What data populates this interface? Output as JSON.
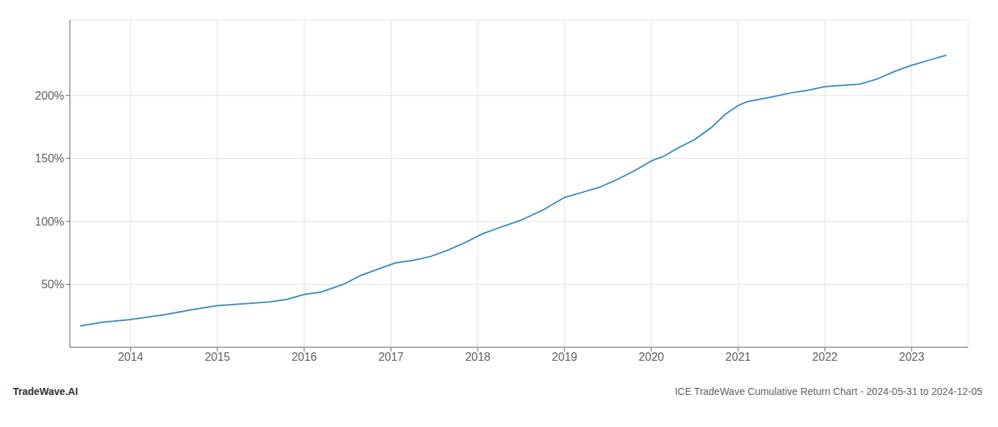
{
  "chart_data": {
    "type": "line",
    "title": "ICE TradeWave Cumulative Return Chart - 2024-05-31 to 2024-12-05",
    "annotations": [
      "TradeWave.AI"
    ],
    "x": [
      2013.42,
      2013.55,
      2013.7,
      2013.85,
      2014.0,
      2014.2,
      2014.4,
      2014.6,
      2014.8,
      2015.0,
      2015.2,
      2015.4,
      2015.6,
      2015.8,
      2016.0,
      2016.2,
      2016.45,
      2016.65,
      2016.85,
      2017.05,
      2017.25,
      2017.45,
      2017.65,
      2017.85,
      2018.05,
      2018.25,
      2018.5,
      2018.75,
      2019.0,
      2019.2,
      2019.4,
      2019.6,
      2019.8,
      2020.0,
      2020.15,
      2020.3,
      2020.5,
      2020.7,
      2020.85,
      2021.0,
      2021.1,
      2021.25,
      2021.4,
      2021.6,
      2021.8,
      2022.0,
      2022.2,
      2022.4,
      2022.6,
      2022.8,
      2023.0,
      2023.2,
      2023.4
    ],
    "values": [
      17,
      18.5,
      20,
      21,
      22,
      24,
      26,
      28.5,
      31,
      33,
      34,
      35,
      36,
      38,
      42,
      44,
      50,
      57,
      62,
      67,
      69,
      72,
      77,
      83,
      90,
      95,
      101,
      109,
      119,
      123,
      127,
      133,
      140,
      148,
      152,
      158,
      165,
      175,
      185,
      192,
      195,
      197,
      199,
      202,
      204,
      207,
      208,
      209,
      213,
      219,
      224,
      228,
      232
    ],
    "color": "#3a8dc5",
    "xlim": [
      2013.3,
      2023.65
    ],
    "xticks": [
      2014,
      2015,
      2016,
      2017,
      2018,
      2019,
      2020,
      2021,
      2022,
      2023
    ],
    "ylim": [
      0,
      260
    ],
    "yticks": [
      {
        "value": 50,
        "label": "50%"
      },
      {
        "value": 100,
        "label": "100%"
      },
      {
        "value": 150,
        "label": "150%"
      },
      {
        "value": 200,
        "label": "200%"
      }
    ],
    "grid": true
  }
}
